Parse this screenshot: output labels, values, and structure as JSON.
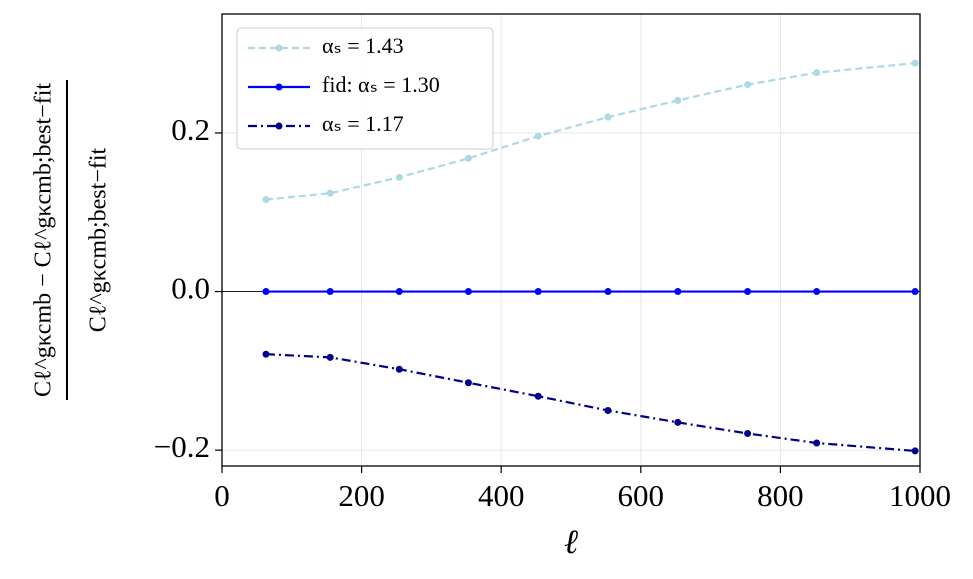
{
  "chart_data": {
    "type": "line",
    "xlabel": "ℓ",
    "ylabel_numerator": "Cℓ^gκcmb − Cℓ^gκcmb;best−fit",
    "ylabel_denominator": "Cℓ^gκcmb;best−fit",
    "x": [
      63,
      155,
      254,
      353,
      453,
      553,
      653,
      753,
      852,
      993
    ],
    "series": [
      {
        "name": "αₛ = 1.43",
        "color": "#add8e6",
        "linestyle": "dashed",
        "values": [
          0.116,
          0.124,
          0.144,
          0.168,
          0.196,
          0.22,
          0.241,
          0.261,
          0.276,
          0.288
        ]
      },
      {
        "name": "fid: αₛ = 1.30",
        "color": "#0000ff",
        "linestyle": "solid",
        "values": [
          0,
          0,
          0,
          0,
          0,
          0,
          0,
          0,
          0,
          0
        ]
      },
      {
        "name": "αₛ = 1.17",
        "color": "#00008b",
        "linestyle": "dashdot",
        "values": [
          -0.079,
          -0.083,
          -0.098,
          -0.115,
          -0.132,
          -0.15,
          -0.165,
          -0.179,
          -0.191,
          -0.201
        ]
      }
    ],
    "xlim": [
      0,
      1000
    ],
    "ylim": [
      -0.22,
      0.35
    ],
    "xticks": [
      0,
      200,
      400,
      600,
      800,
      1000
    ],
    "yticks": [
      {
        "value": -0.2,
        "label": "−0.2"
      },
      {
        "value": 0,
        "label": "0.0"
      },
      0.2
    ],
    "hline": 0,
    "grid": true,
    "legend": "upper left"
  }
}
